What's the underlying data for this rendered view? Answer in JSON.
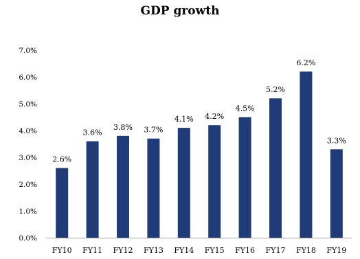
{
  "chart_data": {
    "type": "bar",
    "title": "GDP growth",
    "categories": [
      "FY10",
      "FY11",
      "FY12",
      "FY13",
      "FY14",
      "FY15",
      "FY16",
      "FY17",
      "FY18",
      "FY19"
    ],
    "values": [
      2.6,
      3.6,
      3.8,
      3.7,
      4.1,
      4.2,
      4.5,
      5.2,
      6.2,
      3.3
    ],
    "data_labels": [
      "2.6%",
      "3.6%",
      "3.8%",
      "3.7%",
      "4.1%",
      "4.2%",
      "4.5%",
      "5.2%",
      "6.2%",
      "3.3%"
    ],
    "yticks": [
      "0.0%",
      "1.0%",
      "2.0%",
      "3.0%",
      "4.0%",
      "5.0%",
      "6.0%",
      "7.0%"
    ],
    "ylim": [
      0,
      7
    ],
    "xlabel": "",
    "ylabel": "",
    "grid": false,
    "bar_color": "#1f3b78",
    "axis_color": "#a6a6a6"
  }
}
